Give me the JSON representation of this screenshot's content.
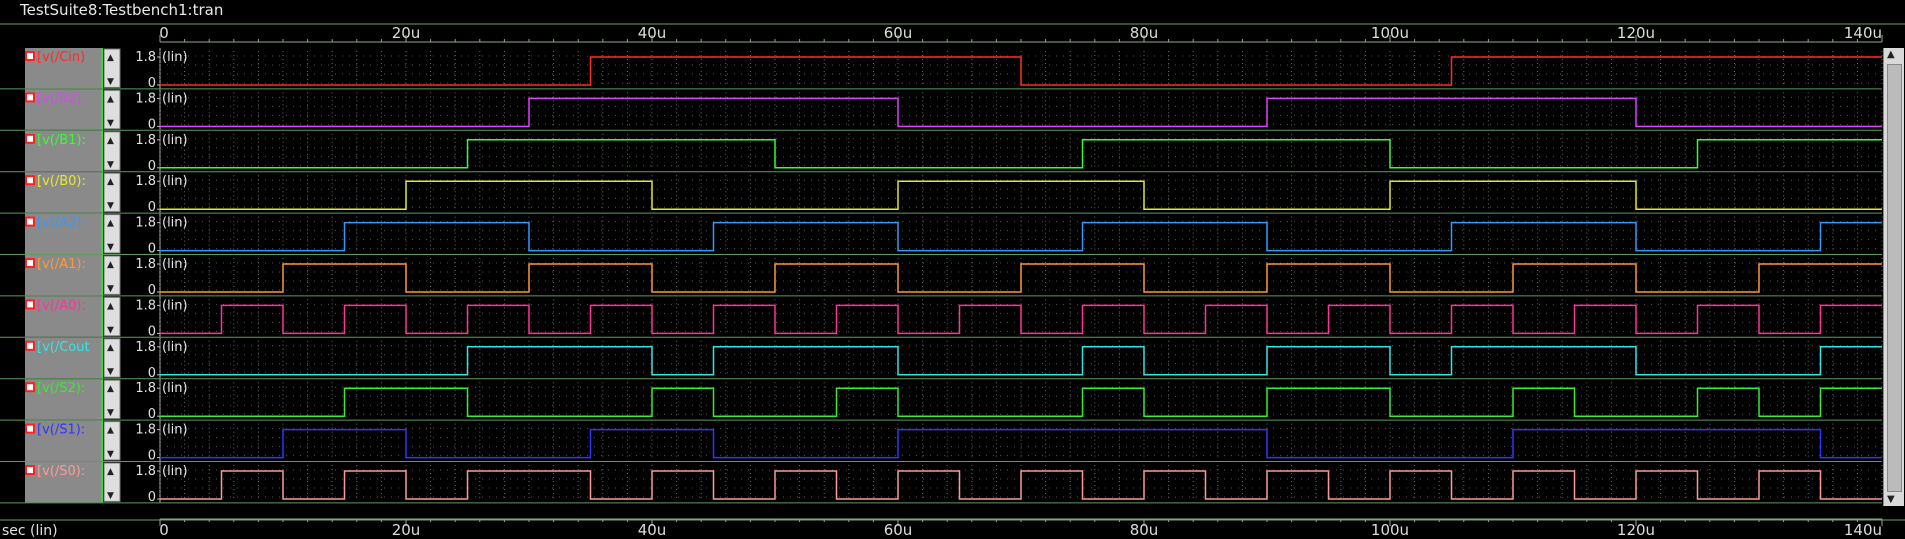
{
  "window": {
    "title": "TestSuite8:Testbench1:tran"
  },
  "x_axis_label": "sec (lin)",
  "chart_data": {
    "type": "line",
    "subtype": "digital-stacked",
    "x_ticks": [
      "0",
      "20u",
      "40u",
      "60u",
      "80u",
      "100u",
      "120u",
      "140u"
    ],
    "x_tick_values": [
      0,
      20,
      40,
      60,
      80,
      100,
      120,
      140
    ],
    "xlim": [
      0,
      140
    ],
    "x_unit": "u",
    "y_ticks": [
      "1.8",
      "0"
    ],
    "y_scale_label": "(lin)",
    "series": [
      {
        "name": "[v(/Cin)",
        "color": "#ff2a2a",
        "transitions": [
          35,
          70,
          105
        ],
        "initial": 0
      },
      {
        "name": "[v(/B2):",
        "color": "#e040ff",
        "transitions": [
          30,
          60,
          90,
          120
        ],
        "initial": 0
      },
      {
        "name": "[v(/B1):",
        "color": "#33ff33",
        "transitions": [
          25,
          50,
          75,
          100,
          125
        ],
        "initial": 0
      },
      {
        "name": "[v(/B0):",
        "color": "#e6e633",
        "transitions": [
          20,
          40,
          60,
          80,
          100,
          120
        ],
        "initial": 0
      },
      {
        "name": "[v(/A2):",
        "color": "#3399ff",
        "transitions": [
          15,
          30,
          45,
          60,
          75,
          90,
          105,
          120,
          135
        ],
        "initial": 0
      },
      {
        "name": "[v(/A1):",
        "color": "#ff9933",
        "transitions": [
          10,
          20,
          30,
          40,
          50,
          60,
          70,
          80,
          90,
          100,
          110,
          120,
          130
        ],
        "initial": 0
      },
      {
        "name": "[v(/A0):",
        "color": "#ff3399",
        "transitions": [
          5,
          10,
          15,
          20,
          25,
          30,
          35,
          40,
          45,
          50,
          55,
          60,
          65,
          70,
          75,
          80,
          85,
          90,
          95,
          100,
          105,
          110,
          115,
          120,
          125,
          130,
          135
        ],
        "initial": 0
      },
      {
        "name": "[v(/Cout",
        "color": "#33e6e6",
        "transitions": [
          25,
          40,
          45,
          60,
          75,
          80,
          90,
          100,
          105,
          120,
          135
        ],
        "initial": 0
      },
      {
        "name": "[v(/S2):",
        "color": "#33ee33",
        "transitions": [
          15,
          25,
          40,
          45,
          55,
          60,
          75,
          80,
          90,
          100,
          110,
          115,
          125,
          130,
          135
        ],
        "initial": 0
      },
      {
        "name": "[v(/S1):",
        "color": "#3333ff",
        "transitions": [
          10,
          20,
          35,
          45,
          60,
          90,
          110,
          135
        ],
        "initial": 0
      },
      {
        "name": "[v(/S0):",
        "color": "#ff9999",
        "transitions": [
          5,
          10,
          15,
          20,
          25,
          35,
          40,
          45,
          50,
          55,
          60,
          65,
          70,
          75,
          80,
          85,
          90,
          95,
          100,
          105,
          110,
          115,
          120,
          125,
          130,
          135
        ],
        "initial": 0
      }
    ]
  }
}
